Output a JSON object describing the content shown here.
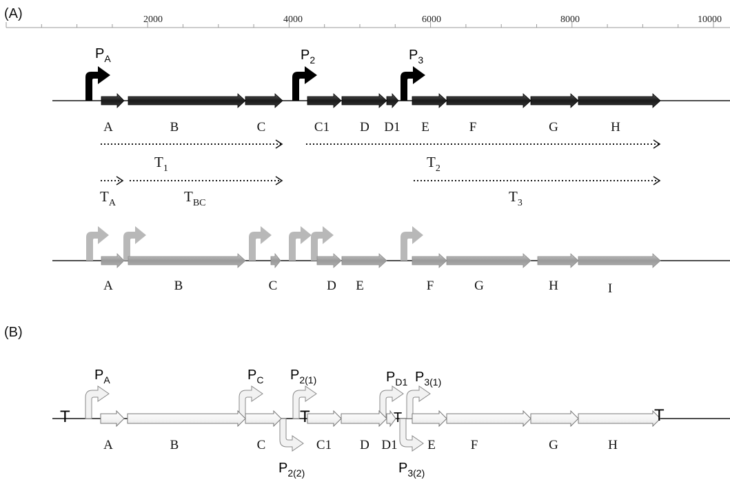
{
  "panel_a": {
    "label": "(A)",
    "ruler": {
      "min": 0,
      "max": 10000,
      "tick_labels": [
        "2000",
        "4000",
        "6000",
        "8000",
        "10000"
      ]
    },
    "black_operon": {
      "genes": [
        "A",
        "B",
        "C",
        "C1",
        "D",
        "D1",
        "E",
        "F",
        "G",
        "H"
      ],
      "promoters": [
        {
          "main": "P",
          "sub": "A"
        },
        {
          "main": "P",
          "sub": "2"
        },
        {
          "main": "P",
          "sub": "3"
        }
      ],
      "transcripts": [
        {
          "main": "T",
          "sub": "1"
        },
        {
          "main": "T",
          "sub": "2"
        },
        {
          "main": "T",
          "sub": "A"
        },
        {
          "main": "T",
          "sub": "BC"
        },
        {
          "main": "T",
          "sub": "3"
        }
      ]
    },
    "gray_operon": {
      "genes": [
        "A",
        "B",
        "C",
        "D",
        "E",
        "F",
        "G",
        "H",
        "I"
      ]
    }
  },
  "panel_b": {
    "label": "(B)",
    "genes": [
      "A",
      "B",
      "C",
      "C1",
      "D",
      "D1",
      "E",
      "F",
      "G",
      "H"
    ],
    "promoters_forward": [
      {
        "main": "P",
        "sub": "A"
      },
      {
        "main": "P",
        "sub": "C"
      },
      {
        "main": "P",
        "sub": "2(1)"
      },
      {
        "main": "P",
        "sub": "D1"
      },
      {
        "main": "P",
        "sub": "3(1)"
      }
    ],
    "promoters_reverse": [
      {
        "main": "P",
        "sub": "2(2)"
      },
      {
        "main": "P",
        "sub": "3(2)"
      }
    ],
    "terminator_symbol": "T"
  },
  "colors": {
    "black_gene": "#2b2b2b",
    "gray_gene": "#a6a6a6",
    "white_gene": "#ffffff",
    "promoter_black": "#000000",
    "promoter_gray": "#b8b8b8",
    "promoter_white": "#f2f2f2"
  }
}
